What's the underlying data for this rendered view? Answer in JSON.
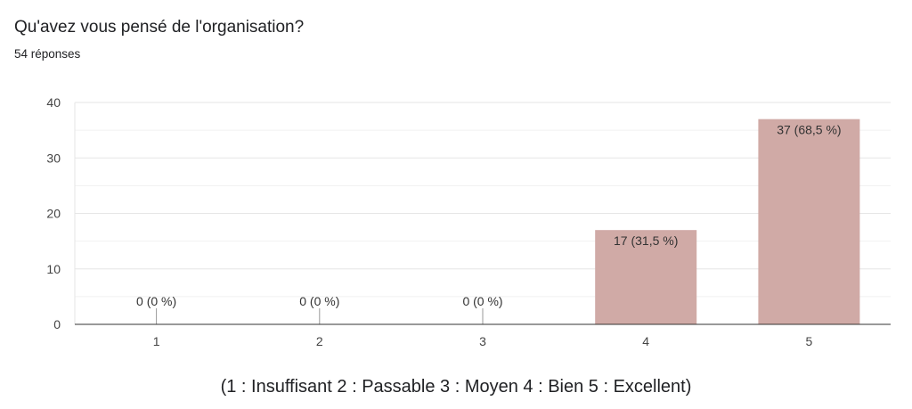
{
  "question": {
    "title": "Qu'avez vous pensé de l'organisation?",
    "responses": "54 réponses"
  },
  "chart_data": {
    "type": "bar",
    "categories": [
      "1",
      "2",
      "3",
      "4",
      "5"
    ],
    "values": [
      0,
      0,
      0,
      17,
      37
    ],
    "data_labels": [
      "0 (0 %)",
      "0 (0 %)",
      "0 (0 %)",
      "17 (31,5 %)",
      "37 (68,5 %)"
    ],
    "ylim": [
      0,
      40
    ],
    "yticks": [
      0,
      10,
      20,
      30,
      40
    ],
    "xlabel": "(1 : Insuffisant 2 : Passable 3 : Moyen 4 : Bien 5 : Excellent)",
    "ylabel": "",
    "grid": true,
    "legend": "none",
    "bar_color": "#d0aaa6",
    "grid_color": "#e6e6e6"
  }
}
